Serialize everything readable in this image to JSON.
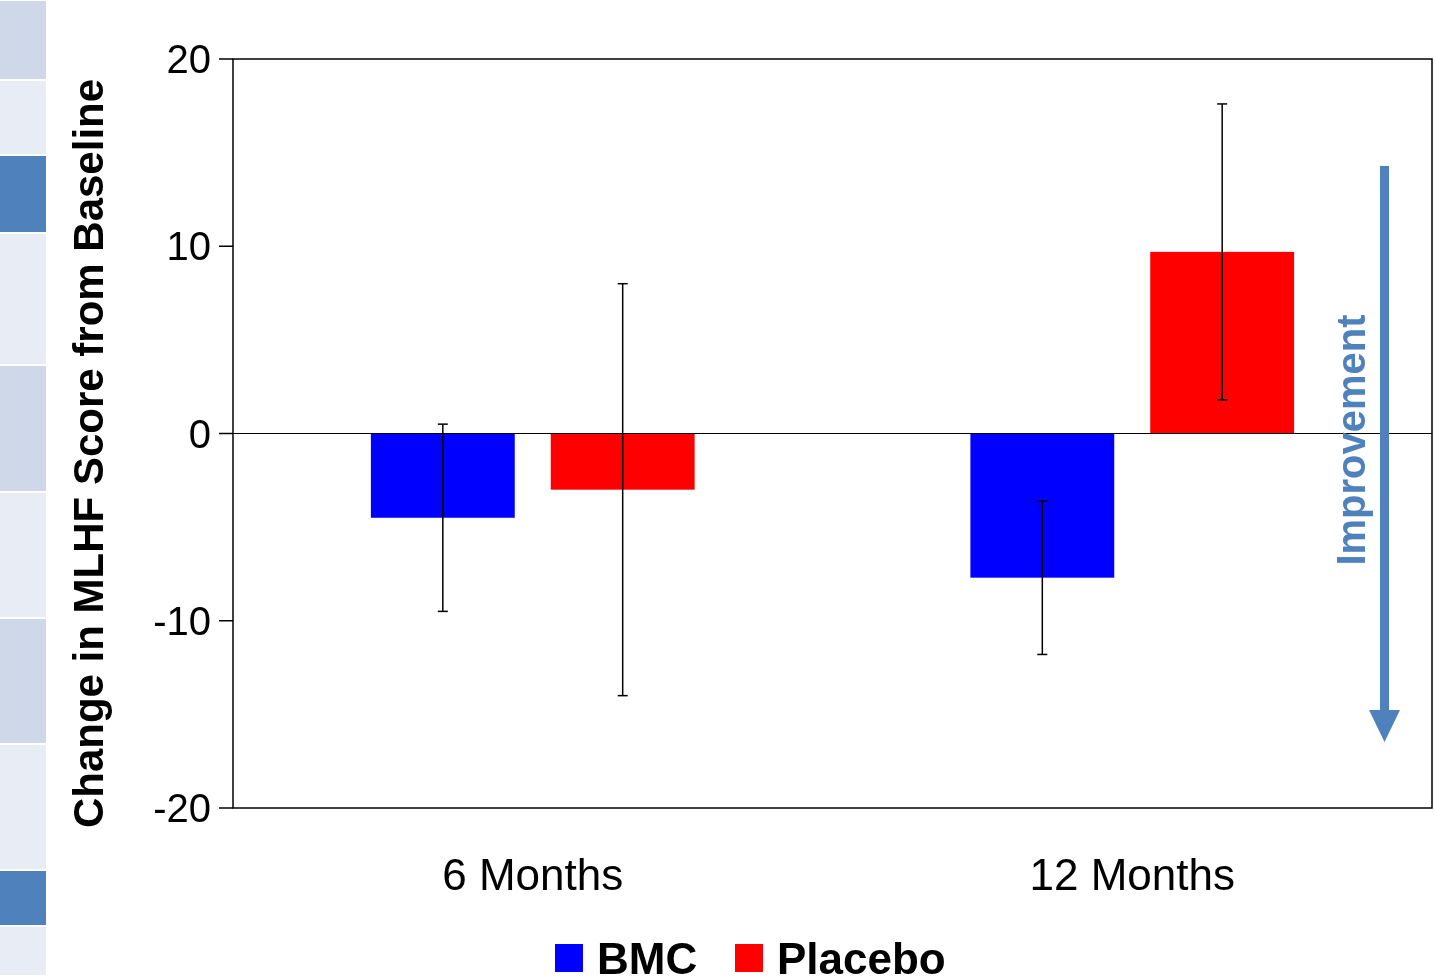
{
  "chart_data": {
    "type": "bar",
    "ylabel": "Change in MLHF Score from Baseline",
    "categories": [
      "6 Months",
      "12 Months"
    ],
    "series": [
      {
        "name": "BMC",
        "color": "#0000ff",
        "values": [
          -4.5,
          -7.7
        ],
        "errors": [
          5.0,
          4.1
        ]
      },
      {
        "name": "Placebo",
        "color": "#ff0000",
        "values": [
          -3.0,
          9.7
        ],
        "errors": [
          11.0,
          7.9
        ]
      }
    ],
    "ylim": [
      -20,
      20
    ],
    "yticks": [
      -20,
      -10,
      0,
      10,
      20
    ],
    "legend": "bottom",
    "annotations": [
      "Improvement"
    ]
  }
}
